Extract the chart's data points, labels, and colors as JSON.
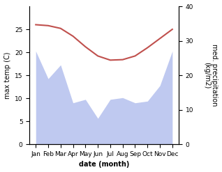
{
  "months": [
    "Jan",
    "Feb",
    "Mar",
    "Apr",
    "May",
    "Jun",
    "Jul",
    "Aug",
    "Sep",
    "Oct",
    "Nov",
    "Dec"
  ],
  "month_x": [
    0,
    1,
    2,
    3,
    4,
    5,
    6,
    7,
    8,
    9,
    10,
    11
  ],
  "temp_max": [
    26.0,
    25.8,
    25.2,
    23.5,
    21.2,
    19.2,
    18.3,
    18.4,
    19.2,
    21.0,
    23.0,
    25.0
  ],
  "precip": [
    27.0,
    19.0,
    23.0,
    12.0,
    13.0,
    7.5,
    13.0,
    13.5,
    12.0,
    12.5,
    17.0,
    27.0
  ],
  "temp_color": "#c0504d",
  "precip_fill_color": "#bfc9f0",
  "temp_ylim": [
    0,
    30
  ],
  "precip_ylim": [
    0,
    40
  ],
  "temp_yticks": [
    0,
    5,
    10,
    15,
    20,
    25
  ],
  "precip_yticks": [
    0,
    10,
    20,
    30,
    40
  ],
  "xlabel": "date (month)",
  "ylabel_left": "max temp (C)",
  "ylabel_right": "med. precipitation\n(kg/m2)",
  "bg_color": "#ffffff",
  "linewidth_temp": 1.5,
  "xlabel_fontsize": 7,
  "ylabel_fontsize": 7,
  "tick_fontsize": 6.5
}
